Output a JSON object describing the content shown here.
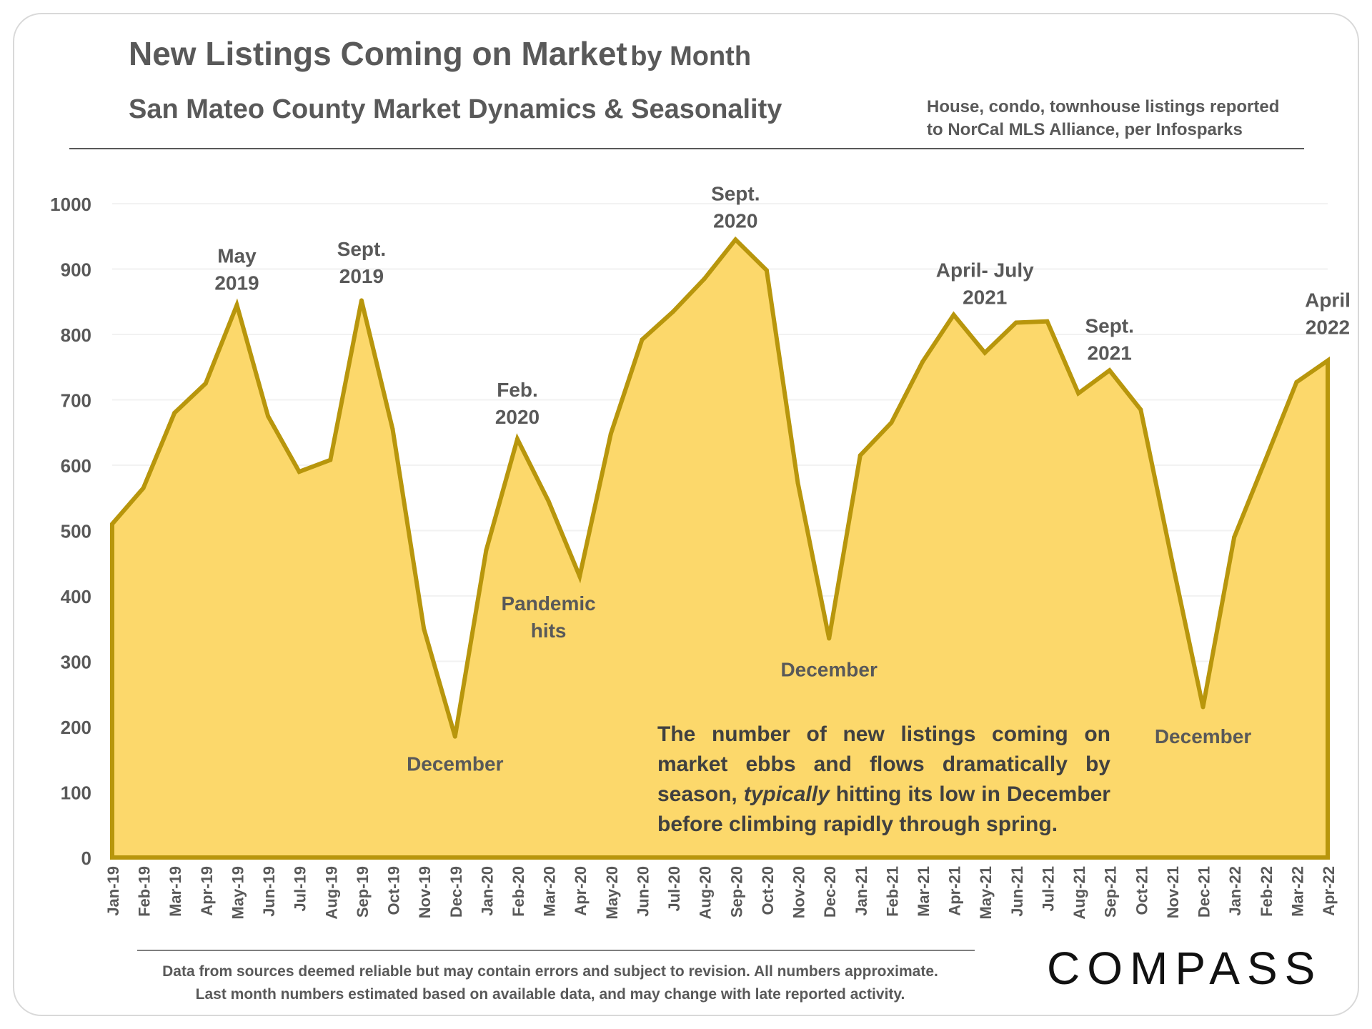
{
  "header": {
    "title_main": "New Listings Coming on Market",
    "title_sub": "by Month",
    "subtitle": "San Mateo County Market Dynamics & Seasonality",
    "note_line1": "House, condo, townhouse listings reported",
    "note_line2": "to NorCal MLS Alliance, per Infosparks"
  },
  "callout": {
    "part1": "The number of new listings coming on market ebbs and flows dramatically by season,",
    "italic": "typically",
    "part2": "hitting its low in December before climbing rapidly through spring."
  },
  "footer": {
    "line1": "Data from sources deemed reliable but may contain errors and subject to revision. All numbers approximate.",
    "line2": "Last month numbers estimated based on available data, and may change with late reported activity."
  },
  "logo": {
    "text": "COMPASS"
  },
  "colors": {
    "fill": "#FCD86B",
    "line": "#B8960C",
    "text": "#595959",
    "grid": "#f2f2f2"
  },
  "chart_data": {
    "type": "area",
    "title": "New Listings Coming on Market by Month",
    "subtitle": "San Mateo County Market Dynamics & Seasonality",
    "xlabel": "",
    "ylabel": "",
    "ylim": [
      0,
      1000
    ],
    "yticks": [
      0,
      100,
      200,
      300,
      400,
      500,
      600,
      700,
      800,
      900,
      1000
    ],
    "categories": [
      "Jan-19",
      "Feb-19",
      "Mar-19",
      "Apr-19",
      "May-19",
      "Jun-19",
      "Jul-19",
      "Aug-19",
      "Sep-19",
      "Oct-19",
      "Nov-19",
      "Dec-19",
      "Jan-20",
      "Feb-20",
      "Mar-20",
      "Apr-20",
      "May-20",
      "Jun-20",
      "Jul-20",
      "Aug-20",
      "Sep-20",
      "Oct-20",
      "Nov-20",
      "Dec-20",
      "Jan-21",
      "Feb-21",
      "Mar-21",
      "Apr-21",
      "May-21",
      "Jun-21",
      "Jul-21",
      "Aug-21",
      "Sep-21",
      "Oct-21",
      "Nov-21",
      "Dec-21",
      "Jan-22",
      "Feb-22",
      "Mar-22",
      "Apr-22"
    ],
    "values": [
      510,
      565,
      680,
      725,
      845,
      675,
      590,
      608,
      852,
      655,
      350,
      185,
      470,
      640,
      545,
      430,
      648,
      792,
      835,
      885,
      945,
      898,
      573,
      335,
      615,
      665,
      758,
      830,
      772,
      818,
      820,
      710,
      745,
      685,
      455,
      230,
      490,
      608,
      727,
      760
    ],
    "annotations": [
      {
        "lines": [
          "May",
          "2019"
        ],
        "category": "May-19",
        "value": 910
      },
      {
        "lines": [
          "Sept.",
          "2019"
        ],
        "category": "Sep-19",
        "value": 920
      },
      {
        "lines": [
          "Feb.",
          "2020"
        ],
        "category": "Feb-20",
        "value": 705
      },
      {
        "lines": [
          "Sept.",
          "2020"
        ],
        "category": "Sep-20",
        "value": 1005
      },
      {
        "lines": [
          "April- July",
          "2021"
        ],
        "category": "May-21",
        "value": 888
      },
      {
        "lines": [
          "Sept.",
          "2021"
        ],
        "category": "Sep-21",
        "value": 803
      },
      {
        "lines": [
          "April",
          "2022"
        ],
        "category": "Apr-22",
        "value": 842
      },
      {
        "lines": [
          "December"
        ],
        "category": "Dec-19",
        "value": 133
      },
      {
        "lines": [
          "Pandemic",
          "hits"
        ],
        "category": "Mar-20",
        "value": 378
      },
      {
        "lines": [
          "December"
        ],
        "category": "Dec-20",
        "value": 277
      },
      {
        "lines": [
          "December"
        ],
        "category": "Dec-21",
        "value": 175
      }
    ]
  }
}
